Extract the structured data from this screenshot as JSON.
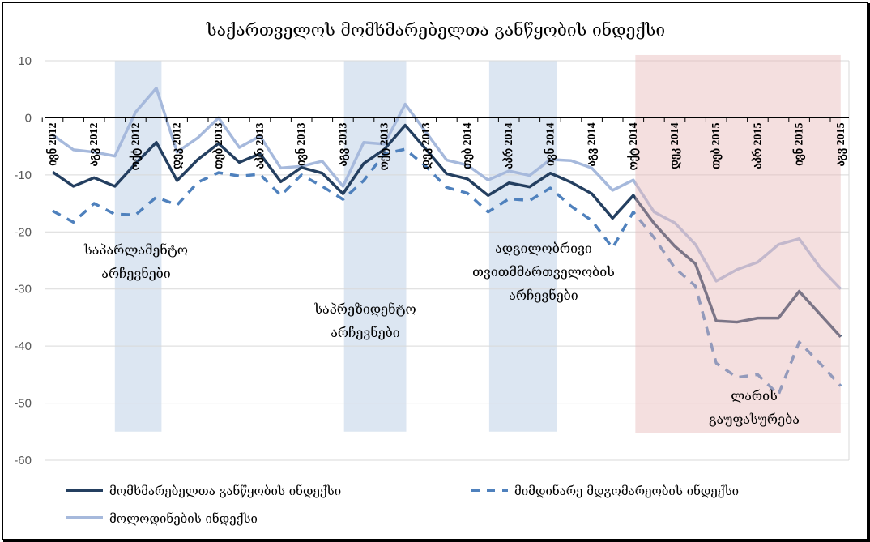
{
  "chart_data": {
    "type": "line",
    "title": "საქართველოს მომხმარებელთა განწყობის ინდექსი",
    "xlabel": "",
    "ylabel": "",
    "ylim": [
      -60,
      10
    ],
    "yticks": [
      10,
      0,
      -10,
      -20,
      -30,
      -40,
      -50,
      -60
    ],
    "grid": true,
    "legend_position": "bottom",
    "x_tick_labels": [
      "ივნ 2012",
      "აგვ 2012",
      "ოქტ 2012",
      "დეკ 2012",
      "თებ 2013",
      "აპრ 2013",
      "ივნ 2013",
      "აგვ 2013",
      "ოქტ 2013",
      "დეკ 2013",
      "თებ 2014",
      "აპრ 2014",
      "ივნ 2014",
      "აგვ 2014",
      "ოქტ 2014",
      "დეკ 2014",
      "თებ 2015",
      "აპრ 2015",
      "ივნ 2015",
      "აგვ 2015"
    ],
    "x_tick_every_months": 2,
    "series": [
      {
        "name": "მომხმარებელთა განწყობის ინდექსი",
        "color": "#243f60",
        "style": "solid",
        "values": [
          -9.5,
          -12,
          -10.5,
          -12,
          -8,
          -4.3,
          -11,
          -7.3,
          -4.5,
          -7.8,
          -6.3,
          -11.2,
          -8.7,
          -9.7,
          -13.3,
          -8,
          -5.5,
          -1.3,
          -5.5,
          -9.8,
          -10.7,
          -13.6,
          -11.4,
          -12.1,
          -9.7,
          -11.3,
          -13.3,
          -17.6,
          -13.6,
          -18.5,
          -22.5,
          -25.6,
          -35.6,
          -35.8,
          -35.1,
          -35.1,
          -30.4,
          -34.4,
          -38.4
        ]
      },
      {
        "name": "მიმდინარე მდგომარეობის ინდექსი",
        "color": "#4f81bd",
        "style": "dashed",
        "values": [
          -16.3,
          -18.3,
          -15,
          -16.9,
          -17,
          -13.9,
          -15.3,
          -11.3,
          -9.6,
          -10.2,
          -9.9,
          -13.6,
          -10,
          -12,
          -14.3,
          -11,
          -6.3,
          -5.5,
          -8.5,
          -12.2,
          -13.2,
          -16.5,
          -14.2,
          -14.5,
          -12.3,
          -15.5,
          -18,
          -22.8,
          -16.5,
          -21,
          -26.3,
          -29.5,
          -43,
          -45.5,
          -45,
          -48.5,
          -39.3,
          -43,
          -47
        ]
      },
      {
        "name": "მოლოდინების ინდექსი",
        "color": "#a6b9dc",
        "style": "solid",
        "values": [
          -3,
          -5.6,
          -6,
          -6.7,
          1,
          5.2,
          -6,
          -3.5,
          0,
          -5.2,
          -3.2,
          -8.8,
          -8.5,
          -7.6,
          -12,
          -4.3,
          -4.6,
          2.4,
          -2.5,
          -7.4,
          -8.3,
          -10.9,
          -9.3,
          -10.1,
          -7.3,
          -7.5,
          -8.8,
          -12.7,
          -10.9,
          -16.5,
          -18.4,
          -22.2,
          -28.6,
          -26.6,
          -25.3,
          -22.2,
          -21.2,
          -26.2,
          -30
        ]
      }
    ],
    "bands": [
      {
        "name": "parliamentary-elections",
        "from_index": 3,
        "to_index": 5.25,
        "y_range": [
          -55,
          10
        ],
        "color": "#dce6f2"
      },
      {
        "name": "presidential-elections",
        "from_index": 14.05,
        "to_index": 17.05,
        "y_range": [
          -55,
          10
        ],
        "color": "#dce6f2"
      },
      {
        "name": "local-elections",
        "from_index": 21.05,
        "to_index": 24.3,
        "y_range": [
          -55,
          10
        ],
        "color": "#dce6f2"
      },
      {
        "name": "lari-devaluation",
        "from_index": 28.1,
        "to_index": 38,
        "y_range": [
          -55.3,
          11
        ],
        "color": "#e6b9b8"
      }
    ],
    "annotations": [
      {
        "name": "parliamentary-elections-label",
        "lines": [
          "საპარლამენტო",
          "არჩევნები"
        ]
      },
      {
        "name": "presidential-elections-label",
        "lines": [
          "საპრეზიდენტო",
          "არჩევნები"
        ]
      },
      {
        "name": "local-elections-label",
        "lines": [
          "ადგილობრივი",
          "თვითმმართველობის",
          "არჩევნები"
        ]
      },
      {
        "name": "lari-devaluation-label",
        "lines": [
          "ლარის",
          "გაუფასურება"
        ]
      }
    ]
  }
}
